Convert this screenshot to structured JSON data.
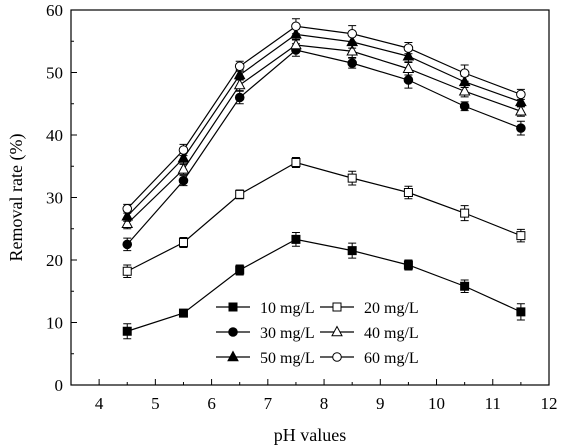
{
  "chart_data": {
    "type": "line",
    "title": "",
    "xlabel": "pH values",
    "ylabel": "Removal rate (%)",
    "xlim": [
      3.5,
      12
    ],
    "ylim": [
      0,
      60
    ],
    "xticks": [
      4,
      5,
      6,
      7,
      8,
      9,
      10,
      11,
      12
    ],
    "yticks": [
      0,
      10,
      20,
      30,
      40,
      50,
      60
    ],
    "grid": false,
    "legend_position": "bottom-center",
    "legend_columns": 2,
    "error_bars": true,
    "x": [
      4.5,
      5.5,
      6.5,
      7.5,
      8.5,
      9.5,
      10.5,
      11.5
    ],
    "series": [
      {
        "name": "10 mg/L",
        "marker": "square-filled",
        "values": [
          8.6,
          11.5,
          18.4,
          23.3,
          21.5,
          19.2,
          15.8,
          11.7
        ],
        "errors": [
          1.2,
          0.6,
          0.8,
          1.1,
          1.2,
          0.8,
          1.0,
          1.3
        ]
      },
      {
        "name": "20 mg/L",
        "marker": "square-open",
        "values": [
          18.2,
          22.8,
          30.5,
          35.6,
          33.1,
          30.8,
          27.5,
          23.9
        ],
        "errors": [
          1.0,
          0.8,
          0.7,
          0.8,
          1.1,
          1.0,
          1.2,
          1.0
        ]
      },
      {
        "name": "30 mg/L",
        "marker": "circle-filled",
        "values": [
          22.5,
          32.7,
          46.0,
          53.6,
          51.5,
          48.8,
          44.6,
          41.1
        ],
        "errors": [
          1.0,
          0.8,
          1.0,
          1.0,
          0.8,
          1.3,
          0.7,
          1.1
        ]
      },
      {
        "name": "40 mg/L",
        "marker": "triangle-open",
        "values": [
          25.8,
          34.5,
          48.0,
          54.4,
          53.4,
          50.6,
          47.0,
          43.8
        ],
        "errors": [
          0.8,
          0.8,
          0.9,
          0.9,
          1.0,
          1.0,
          0.9,
          0.8
        ]
      },
      {
        "name": "50 mg/L",
        "marker": "triangle-filled",
        "values": [
          27.0,
          36.3,
          49.6,
          56.1,
          54.9,
          52.6,
          48.5,
          45.3
        ],
        "errors": [
          0.8,
          0.8,
          0.8,
          0.9,
          1.0,
          0.9,
          0.9,
          0.8
        ]
      },
      {
        "name": "60 mg/L",
        "marker": "circle-open",
        "values": [
          28.2,
          37.6,
          51.0,
          57.4,
          56.2,
          53.9,
          49.9,
          46.5
        ],
        "errors": [
          0.7,
          0.9,
          0.8,
          1.2,
          1.3,
          0.9,
          1.3,
          0.8
        ]
      }
    ]
  }
}
